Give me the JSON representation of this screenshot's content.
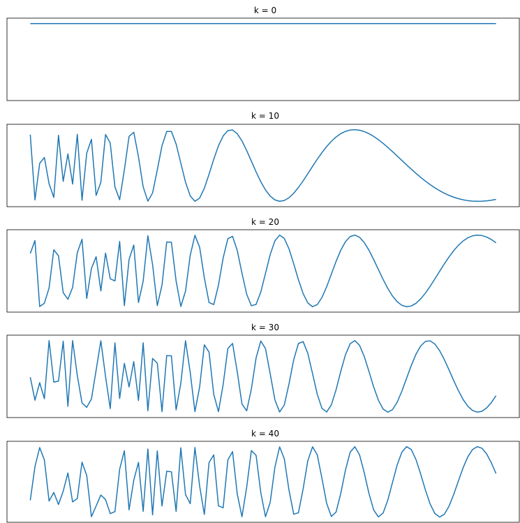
{
  "figure": {
    "line_color": "#1f77b4"
  },
  "chart_data": [
    {
      "type": "line",
      "title": "k = 0",
      "k": 0,
      "x_range": [
        0,
        1
      ],
      "ylim": [
        -1.15,
        1.15
      ],
      "xticks": [],
      "yticks": [],
      "grid": false
    },
    {
      "type": "line",
      "title": "k = 10",
      "k": 10,
      "x_range": [
        0,
        1
      ],
      "ylim": [
        -1.15,
        1.15
      ],
      "xticks": [],
      "yticks": [],
      "grid": false
    },
    {
      "type": "line",
      "title": "k = 20",
      "k": 20,
      "x_range": [
        0,
        1
      ],
      "ylim": [
        -1.15,
        1.15
      ],
      "xticks": [],
      "yticks": [],
      "grid": false
    },
    {
      "type": "line",
      "title": "k = 30",
      "k": 30,
      "x_range": [
        0,
        1
      ],
      "ylim": [
        -1.15,
        1.15
      ],
      "xticks": [],
      "yticks": [],
      "grid": false
    },
    {
      "type": "line",
      "title": "k = 40",
      "k": 40,
      "x_range": [
        0,
        1
      ],
      "ylim": [
        -1.15,
        1.15
      ],
      "xticks": [],
      "yticks": [],
      "grid": false
    }
  ]
}
